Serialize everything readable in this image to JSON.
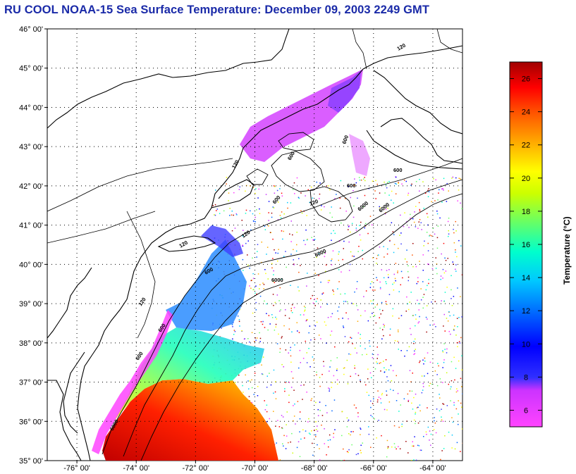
{
  "title": "RU COOL  NOAA-15  Sea Surface Temperature:  December 09, 2003 2249 GMT",
  "map": {
    "lon_range": [
      -77,
      -63
    ],
    "lat_range": [
      35,
      46
    ],
    "lat_labels": [
      "35° 00'",
      "36° 00'",
      "37° 00'",
      "38° 00'",
      "39° 00'",
      "40° 00'",
      "41° 00'",
      "42° 00'",
      "43° 00'",
      "44° 00'",
      "45° 00'",
      "46° 00'"
    ],
    "lon_labels": [
      "-76° 00'",
      "-74° 00'",
      "-72° 00'",
      "-70° 00'",
      "-68° 00'",
      "-66° 00'",
      "-64° 00'"
    ],
    "isobath_labels": [
      "120",
      "600",
      "6000",
      "600",
      "120",
      "6000",
      "600",
      "6000",
      "600",
      "120",
      "6000",
      "120",
      "600",
      "600",
      "120",
      "6000",
      "600",
      "600",
      "120"
    ],
    "grid": "dotted"
  },
  "colorbar": {
    "label": "Temperature (°C)",
    "range": [
      5,
      27
    ],
    "ticks": [
      "26",
      "24",
      "22",
      "20",
      "18",
      "16",
      "14",
      "12",
      "10",
      "8",
      "6"
    ],
    "colors": [
      "#ff33ff",
      "#cc33ff",
      "#3a3aff",
      "#0000ff",
      "#0066ff",
      "#00c8ff",
      "#00ffcc",
      "#66ff66",
      "#ccff00",
      "#ffff00",
      "#ffaa00",
      "#ff5500",
      "#ff0000",
      "#a00000"
    ]
  }
}
